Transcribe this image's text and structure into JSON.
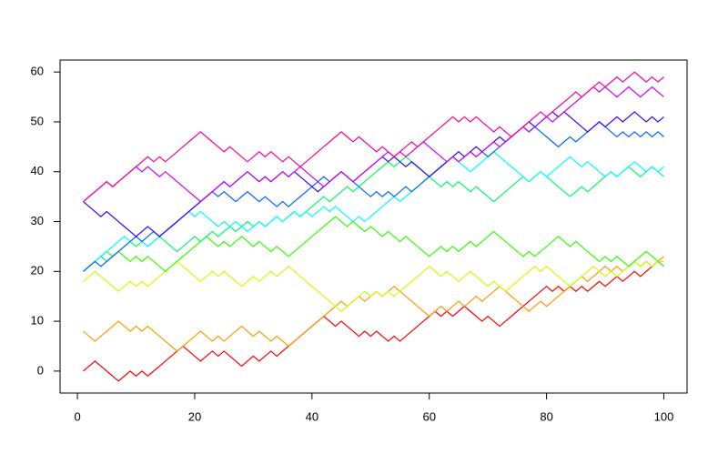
{
  "chart_data": {
    "type": "line",
    "x": [
      1,
      2,
      3,
      4,
      5,
      6,
      7,
      8,
      9,
      10,
      11,
      12,
      13,
      14,
      15,
      16,
      17,
      18,
      19,
      20,
      21,
      22,
      23,
      24,
      25,
      26,
      27,
      28,
      29,
      30,
      31,
      32,
      33,
      34,
      35,
      36,
      37,
      38,
      39,
      40,
      41,
      42,
      43,
      44,
      45,
      46,
      47,
      48,
      49,
      50,
      51,
      52,
      53,
      54,
      55,
      56,
      57,
      58,
      59,
      60,
      61,
      62,
      63,
      64,
      65,
      66,
      67,
      68,
      69,
      70,
      71,
      72,
      73,
      74,
      75,
      76,
      77,
      78,
      79,
      80,
      81,
      82,
      83,
      84,
      85,
      86,
      87,
      88,
      89,
      90,
      91,
      92,
      93,
      94,
      95,
      96,
      97,
      98,
      99,
      100
    ],
    "series": [
      {
        "color": "#FF0000",
        "values": [
          0,
          1,
          2,
          1,
          0,
          -1,
          -2,
          -1,
          0,
          -1,
          0,
          -1,
          0,
          1,
          2,
          3,
          4,
          5,
          4,
          3,
          2,
          3,
          4,
          3,
          4,
          3,
          2,
          1,
          2,
          3,
          2,
          3,
          4,
          3,
          4,
          5,
          6,
          7,
          8,
          9,
          10,
          11,
          10,
          9,
          10,
          9,
          8,
          7,
          8,
          7,
          8,
          7,
          6,
          7,
          6,
          7,
          8,
          9,
          10,
          11,
          12,
          11,
          12,
          11,
          12,
          13,
          12,
          11,
          10,
          11,
          10,
          9,
          10,
          11,
          12,
          13,
          14,
          15,
          16,
          17,
          16,
          17,
          16,
          17,
          16,
          17,
          16,
          17,
          18,
          17,
          18,
          19,
          18,
          19,
          20,
          19,
          20,
          21,
          22,
          21
        ]
      },
      {
        "color": "#FF9900",
        "values": [
          8,
          7,
          6,
          7,
          8,
          9,
          10,
          9,
          8,
          9,
          8,
          9,
          8,
          7,
          6,
          5,
          4,
          5,
          6,
          7,
          8,
          7,
          6,
          7,
          6,
          7,
          8,
          9,
          8,
          7,
          8,
          7,
          6,
          7,
          6,
          5,
          6,
          7,
          8,
          9,
          10,
          11,
          12,
          13,
          14,
          13,
          14,
          15,
          14,
          15,
          16,
          15,
          16,
          17,
          16,
          15,
          14,
          13,
          12,
          11,
          12,
          13,
          12,
          13,
          14,
          13,
          14,
          15,
          14,
          15,
          16,
          17,
          16,
          15,
          14,
          13,
          12,
          13,
          14,
          13,
          14,
          15,
          16,
          17,
          18,
          19,
          18,
          19,
          20,
          21,
          20,
          21,
          20,
          21,
          22,
          21,
          22,
          21,
          22,
          23
        ]
      },
      {
        "color": "#CCFF00",
        "values": [
          18,
          19,
          20,
          19,
          18,
          17,
          16,
          17,
          18,
          17,
          18,
          17,
          18,
          19,
          20,
          21,
          22,
          21,
          20,
          19,
          18,
          19,
          20,
          19,
          20,
          19,
          18,
          17,
          18,
          19,
          18,
          19,
          20,
          19,
          20,
          21,
          20,
          19,
          18,
          17,
          16,
          15,
          14,
          13,
          12,
          13,
          14,
          15,
          16,
          15,
          16,
          15,
          16,
          15,
          16,
          17,
          18,
          19,
          20,
          21,
          20,
          19,
          20,
          19,
          18,
          19,
          20,
          19,
          18,
          17,
          18,
          17,
          16,
          17,
          18,
          19,
          20,
          21,
          20,
          21,
          20,
          19,
          18,
          17,
          18,
          19,
          20,
          21,
          20,
          19,
          20,
          19,
          20,
          21,
          22,
          21,
          22,
          21,
          22,
          22
        ]
      },
      {
        "color": "#33FF00",
        "values": [
          20,
          21,
          22,
          23,
          24,
          23,
          24,
          23,
          22,
          23,
          22,
          23,
          22,
          21,
          20,
          21,
          22,
          23,
          24,
          25,
          26,
          27,
          26,
          25,
          26,
          25,
          26,
          27,
          26,
          25,
          26,
          25,
          24,
          25,
          24,
          23,
          24,
          25,
          26,
          27,
          28,
          29,
          30,
          31,
          30,
          29,
          30,
          29,
          28,
          29,
          28,
          27,
          28,
          27,
          26,
          27,
          26,
          25,
          24,
          23,
          24,
          25,
          24,
          25,
          24,
          25,
          26,
          25,
          26,
          27,
          28,
          27,
          26,
          25,
          24,
          23,
          24,
          23,
          24,
          25,
          26,
          27,
          26,
          25,
          26,
          25,
          24,
          23,
          22,
          23,
          22,
          23,
          22,
          21,
          22,
          23,
          24,
          23,
          22,
          21
        ]
      },
      {
        "color": "#00FF66",
        "values": [
          20,
          21,
          22,
          23,
          22,
          23,
          24,
          25,
          26,
          25,
          26,
          25,
          26,
          27,
          26,
          25,
          24,
          25,
          26,
          27,
          26,
          27,
          28,
          27,
          28,
          29,
          28,
          29,
          30,
          29,
          30,
          29,
          30,
          31,
          30,
          31,
          32,
          31,
          32,
          33,
          34,
          35,
          34,
          35,
          36,
          37,
          36,
          37,
          38,
          39,
          40,
          41,
          42,
          41,
          42,
          43,
          42,
          41,
          40,
          39,
          38,
          37,
          38,
          37,
          38,
          37,
          36,
          37,
          36,
          35,
          34,
          35,
          36,
          37,
          38,
          39,
          38,
          39,
          40,
          39,
          38,
          37,
          36,
          35,
          36,
          37,
          36,
          37,
          38,
          39,
          40,
          39,
          40,
          41,
          40,
          39,
          40,
          41,
          40,
          39
        ]
      },
      {
        "color": "#00FFFF",
        "values": [
          20,
          21,
          22,
          23,
          24,
          25,
          26,
          27,
          26,
          27,
          26,
          25,
          26,
          27,
          28,
          29,
          30,
          31,
          32,
          31,
          32,
          31,
          30,
          29,
          30,
          29,
          30,
          29,
          28,
          29,
          30,
          29,
          30,
          31,
          30,
          31,
          32,
          31,
          32,
          31,
          32,
          33,
          32,
          33,
          32,
          31,
          30,
          31,
          30,
          31,
          32,
          33,
          34,
          35,
          34,
          35,
          36,
          37,
          38,
          39,
          40,
          41,
          42,
          43,
          42,
          41,
          40,
          41,
          42,
          43,
          44,
          43,
          42,
          41,
          40,
          39,
          38,
          39,
          40,
          39,
          40,
          41,
          42,
          43,
          42,
          41,
          42,
          41,
          40,
          39,
          40,
          39,
          40,
          41,
          42,
          41,
          40,
          41,
          40,
          41
        ]
      },
      {
        "color": "#0066FF",
        "values": [
          20,
          21,
          22,
          21,
          22,
          23,
          24,
          25,
          26,
          27,
          26,
          27,
          28,
          27,
          28,
          29,
          30,
          31,
          32,
          33,
          34,
          35,
          36,
          35,
          36,
          35,
          34,
          35,
          36,
          35,
          34,
          35,
          34,
          33,
          34,
          33,
          34,
          35,
          36,
          37,
          38,
          39,
          38,
          39,
          40,
          39,
          38,
          37,
          36,
          35,
          36,
          35,
          36,
          35,
          36,
          37,
          36,
          37,
          38,
          39,
          40,
          41,
          42,
          43,
          42,
          43,
          44,
          43,
          44,
          43,
          44,
          45,
          46,
          47,
          48,
          49,
          48,
          49,
          48,
          47,
          46,
          45,
          46,
          47,
          46,
          47,
          48,
          49,
          50,
          49,
          48,
          47,
          48,
          47,
          48,
          47,
          48,
          47,
          48,
          47
        ]
      },
      {
        "color": "#3300FF",
        "values": [
          34,
          33,
          32,
          31,
          32,
          31,
          30,
          29,
          28,
          27,
          28,
          29,
          28,
          27,
          28,
          29,
          30,
          31,
          32,
          33,
          34,
          35,
          36,
          37,
          38,
          37,
          38,
          39,
          40,
          39,
          38,
          39,
          38,
          39,
          40,
          39,
          40,
          39,
          38,
          37,
          36,
          37,
          38,
          39,
          40,
          39,
          38,
          39,
          40,
          41,
          42,
          43,
          42,
          43,
          42,
          41,
          42,
          41,
          40,
          39,
          40,
          41,
          42,
          43,
          44,
          43,
          44,
          45,
          44,
          45,
          46,
          47,
          46,
          47,
          48,
          49,
          50,
          49,
          50,
          51,
          52,
          51,
          52,
          51,
          50,
          49,
          48,
          49,
          50,
          49,
          50,
          51,
          50,
          51,
          52,
          51,
          50,
          51,
          50,
          51
        ]
      },
      {
        "color": "#CC00FF",
        "values": [
          34,
          35,
          36,
          37,
          38,
          37,
          38,
          39,
          40,
          41,
          40,
          41,
          40,
          39,
          40,
          39,
          38,
          37,
          36,
          35,
          34,
          35,
          36,
          37,
          38,
          37,
          38,
          39,
          40,
          39,
          38,
          39,
          38,
          39,
          40,
          39,
          40,
          41,
          40,
          39,
          38,
          37,
          38,
          39,
          40,
          39,
          38,
          39,
          40,
          41,
          42,
          43,
          44,
          43,
          44,
          43,
          44,
          45,
          46,
          45,
          44,
          43,
          42,
          43,
          42,
          43,
          44,
          43,
          44,
          45,
          46,
          45,
          46,
          47,
          48,
          49,
          48,
          49,
          50,
          51,
          50,
          51,
          52,
          53,
          54,
          55,
          56,
          57,
          56,
          57,
          56,
          55,
          56,
          57,
          56,
          55,
          56,
          57,
          56,
          55
        ]
      },
      {
        "color": "#FF0099",
        "values": [
          34,
          35,
          36,
          37,
          38,
          37,
          38,
          39,
          40,
          41,
          42,
          43,
          42,
          43,
          42,
          43,
          44,
          45,
          46,
          47,
          48,
          47,
          46,
          45,
          44,
          45,
          44,
          43,
          42,
          43,
          44,
          43,
          44,
          43,
          42,
          43,
          42,
          41,
          42,
          43,
          44,
          45,
          46,
          47,
          48,
          47,
          46,
          47,
          46,
          45,
          44,
          45,
          44,
          43,
          44,
          45,
          46,
          45,
          46,
          47,
          48,
          49,
          50,
          51,
          50,
          51,
          50,
          51,
          50,
          49,
          48,
          49,
          48,
          47,
          48,
          49,
          50,
          51,
          52,
          51,
          52,
          53,
          54,
          55,
          56,
          55,
          56,
          57,
          58,
          57,
          58,
          59,
          58,
          59,
          60,
          59,
          58,
          59,
          58,
          59
        ]
      }
    ],
    "xlim": [
      -2.96,
      103.96
    ],
    "ylim": [
      -4.4,
      62.4
    ],
    "xticks": [
      0,
      20,
      40,
      60,
      80,
      100
    ],
    "yticks": [
      0,
      10,
      20,
      30,
      40,
      50,
      60
    ]
  }
}
